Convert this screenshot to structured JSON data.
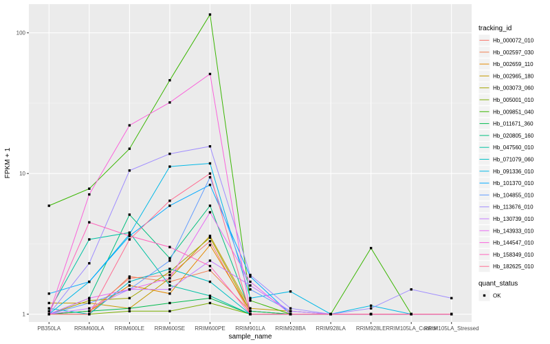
{
  "chart_data": {
    "type": "line",
    "xlabel": "sample_name",
    "ylabel": "FPKM + 1",
    "y_scale": "log10",
    "ylim": [
      0.88,
      160
    ],
    "y_ticks": [
      {
        "value": 1,
        "label": "1"
      },
      {
        "value": 10,
        "label": "10"
      },
      {
        "value": 100,
        "label": "100"
      }
    ],
    "categories": [
      "PB350LA",
      "RRIM600LA",
      "RRIM600LE",
      "RRIM600SE",
      "RRIM600PE",
      "RRIM901LA",
      "RRIM928BA",
      "RRIM928LA",
      "RRIM928LE",
      "RRIM105LA_Control",
      "RRIM105LA_Stressed"
    ],
    "legend": {
      "title": "tracking_id",
      "position": "right"
    },
    "shape_legend": {
      "title": "quant_status",
      "items": [
        "OK"
      ]
    },
    "series": [
      {
        "name": "Hb_000072_010",
        "color": "#F8766D",
        "values": [
          1.0,
          1.05,
          1.8,
          1.9,
          3.3,
          1.0,
          1.0,
          1.0,
          1.0,
          1.0,
          1.0
        ]
      },
      {
        "name": "Hb_002597_030",
        "color": "#F07E4F",
        "values": [
          1.0,
          1.0,
          1.85,
          1.7,
          2.05,
          1.05,
          1.0,
          1.0,
          1.0,
          1.0,
          1.0
        ]
      },
      {
        "name": "Hb_002659_110",
        "color": "#E38900",
        "values": [
          1.0,
          1.05,
          1.6,
          1.4,
          3.1,
          1.05,
          1.0,
          1.0,
          1.0,
          1.0,
          1.0
        ]
      },
      {
        "name": "Hb_002965_180",
        "color": "#C49A00",
        "values": [
          1.2,
          1.2,
          1.1,
          1.8,
          3.6,
          1.1,
          1.05,
          1.0,
          1.0,
          1.0,
          1.0
        ]
      },
      {
        "name": "Hb_003073_060",
        "color": "#A3A500",
        "values": [
          1.0,
          1.25,
          1.3,
          2.0,
          3.5,
          1.05,
          1.0,
          1.0,
          1.0,
          1.0,
          1.0
        ]
      },
      {
        "name": "Hb_005001_010",
        "color": "#7CAE00",
        "values": [
          1.0,
          1.0,
          1.05,
          1.05,
          1.2,
          1.0,
          1.0,
          1.0,
          1.0,
          1.0,
          1.0
        ]
      },
      {
        "name": "Hb_009851_040",
        "color": "#39B600",
        "values": [
          5.9,
          7.8,
          15.0,
          46.0,
          135.0,
          1.25,
          1.0,
          1.0,
          2.95,
          1.0,
          1.0
        ]
      },
      {
        "name": "Hb_011671_360",
        "color": "#00BB4E",
        "values": [
          1.0,
          1.05,
          1.1,
          1.2,
          1.3,
          1.0,
          1.0,
          1.0,
          1.0,
          1.0,
          1.0
        ]
      },
      {
        "name": "Hb_020805_160",
        "color": "#00BF7D",
        "values": [
          1.0,
          1.3,
          5.1,
          2.5,
          5.9,
          1.05,
          1.0,
          1.0,
          1.0,
          1.0,
          1.0
        ]
      },
      {
        "name": "Hb_047560_010",
        "color": "#00C1A3",
        "values": [
          1.05,
          3.4,
          3.8,
          1.6,
          1.35,
          1.0,
          1.0,
          1.0,
          1.0,
          1.0,
          1.0
        ]
      },
      {
        "name": "Hb_071079_060",
        "color": "#00BFC4",
        "values": [
          1.1,
          1.0,
          1.7,
          2.1,
          1.7,
          1.0,
          1.0,
          1.0,
          1.0,
          1.0,
          1.0
        ]
      },
      {
        "name": "Hb_091336_010",
        "color": "#00B8E7",
        "values": [
          1.0,
          1.7,
          3.7,
          11.2,
          11.8,
          1.3,
          1.45,
          1.0,
          1.15,
          1.0,
          1.0
        ]
      },
      {
        "name": "Hb_101370_010",
        "color": "#00A9FF",
        "values": [
          1.4,
          1.7,
          3.6,
          5.9,
          8.3,
          1.85,
          1.0,
          1.0,
          1.0,
          1.0,
          1.0
        ]
      },
      {
        "name": "Hb_104855_010",
        "color": "#619CFF",
        "values": [
          1.0,
          1.2,
          1.5,
          2.4,
          9.4,
          1.5,
          1.05,
          1.0,
          1.0,
          1.0,
          1.0
        ]
      },
      {
        "name": "Hb_113676_010",
        "color": "#9F8CFF",
        "values": [
          1.0,
          2.3,
          10.5,
          13.8,
          15.6,
          1.9,
          1.1,
          1.0,
          1.1,
          1.5,
          1.3
        ]
      },
      {
        "name": "Hb_130739_010",
        "color": "#C77CFF",
        "values": [
          1.0,
          1.1,
          1.5,
          1.5,
          2.4,
          1.6,
          1.05,
          1.0,
          1.0,
          1.0,
          1.0
        ]
      },
      {
        "name": "Hb_143933_010",
        "color": "#E76BF3",
        "values": [
          1.0,
          1.3,
          1.5,
          1.8,
          5.3,
          1.7,
          1.0,
          1.0,
          1.0,
          1.0,
          1.0
        ]
      },
      {
        "name": "Hb_144547_010",
        "color": "#FA62DB",
        "values": [
          1.0,
          7.1,
          22.0,
          32.0,
          51.0,
          1.0,
          1.0,
          1.0,
          1.0,
          1.0,
          1.0
        ]
      },
      {
        "name": "Hb_158349_010",
        "color": "#FF62BC",
        "values": [
          1.0,
          4.5,
          3.6,
          3.0,
          2.2,
          1.0,
          1.0,
          1.0,
          1.0,
          1.0,
          1.0
        ]
      },
      {
        "name": "Hb_182625_010",
        "color": "#FF6C91",
        "values": [
          1.0,
          1.0,
          3.4,
          6.4,
          10.0,
          1.0,
          1.0,
          1.0,
          1.0,
          1.0,
          1.0
        ]
      }
    ]
  }
}
